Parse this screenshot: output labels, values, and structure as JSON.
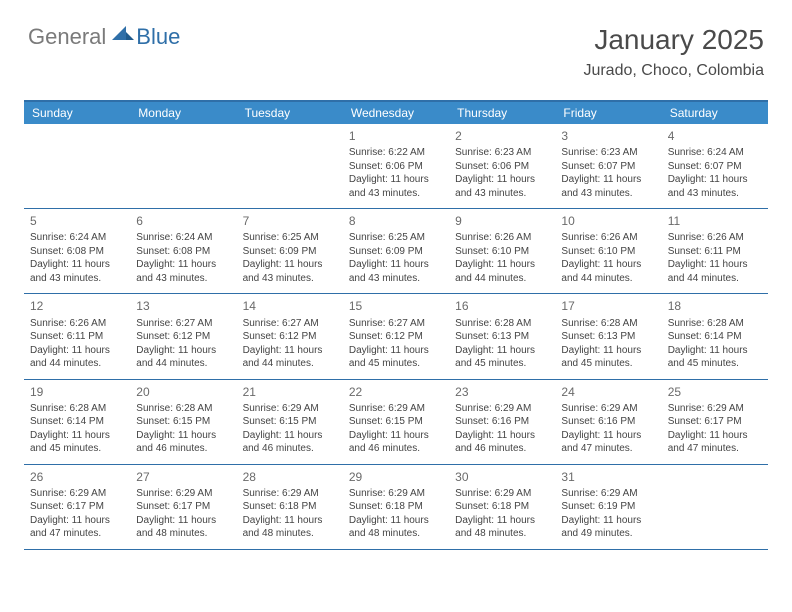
{
  "logo": {
    "general": "General",
    "blue": "Blue"
  },
  "title": "January 2025",
  "location": "Jurado, Choco, Colombia",
  "colors": {
    "header_bar": "#3a8bc9",
    "rule": "#2f6fa8",
    "title_text": "#4a4a4a",
    "logo_gray": "#7a7a7a",
    "logo_blue": "#2f6fa8",
    "day_text": "#444444",
    "daynum_text": "#6a6a6a",
    "white": "#ffffff"
  },
  "typography": {
    "title_fontsize": 28,
    "location_fontsize": 16,
    "weekday_fontsize": 12,
    "daynum_fontsize": 12,
    "body_fontsize": 10
  },
  "weekdays": [
    "Sunday",
    "Monday",
    "Tuesday",
    "Wednesday",
    "Thursday",
    "Friday",
    "Saturday"
  ],
  "days": [
    {
      "n": 1,
      "sr": "6:22 AM",
      "ss": "6:06 PM",
      "dl": "11 hours and 43 minutes."
    },
    {
      "n": 2,
      "sr": "6:23 AM",
      "ss": "6:06 PM",
      "dl": "11 hours and 43 minutes."
    },
    {
      "n": 3,
      "sr": "6:23 AM",
      "ss": "6:07 PM",
      "dl": "11 hours and 43 minutes."
    },
    {
      "n": 4,
      "sr": "6:24 AM",
      "ss": "6:07 PM",
      "dl": "11 hours and 43 minutes."
    },
    {
      "n": 5,
      "sr": "6:24 AM",
      "ss": "6:08 PM",
      "dl": "11 hours and 43 minutes."
    },
    {
      "n": 6,
      "sr": "6:24 AM",
      "ss": "6:08 PM",
      "dl": "11 hours and 43 minutes."
    },
    {
      "n": 7,
      "sr": "6:25 AM",
      "ss": "6:09 PM",
      "dl": "11 hours and 43 minutes."
    },
    {
      "n": 8,
      "sr": "6:25 AM",
      "ss": "6:09 PM",
      "dl": "11 hours and 43 minutes."
    },
    {
      "n": 9,
      "sr": "6:26 AM",
      "ss": "6:10 PM",
      "dl": "11 hours and 44 minutes."
    },
    {
      "n": 10,
      "sr": "6:26 AM",
      "ss": "6:10 PM",
      "dl": "11 hours and 44 minutes."
    },
    {
      "n": 11,
      "sr": "6:26 AM",
      "ss": "6:11 PM",
      "dl": "11 hours and 44 minutes."
    },
    {
      "n": 12,
      "sr": "6:26 AM",
      "ss": "6:11 PM",
      "dl": "11 hours and 44 minutes."
    },
    {
      "n": 13,
      "sr": "6:27 AM",
      "ss": "6:12 PM",
      "dl": "11 hours and 44 minutes."
    },
    {
      "n": 14,
      "sr": "6:27 AM",
      "ss": "6:12 PM",
      "dl": "11 hours and 44 minutes."
    },
    {
      "n": 15,
      "sr": "6:27 AM",
      "ss": "6:12 PM",
      "dl": "11 hours and 45 minutes."
    },
    {
      "n": 16,
      "sr": "6:28 AM",
      "ss": "6:13 PM",
      "dl": "11 hours and 45 minutes."
    },
    {
      "n": 17,
      "sr": "6:28 AM",
      "ss": "6:13 PM",
      "dl": "11 hours and 45 minutes."
    },
    {
      "n": 18,
      "sr": "6:28 AM",
      "ss": "6:14 PM",
      "dl": "11 hours and 45 minutes."
    },
    {
      "n": 19,
      "sr": "6:28 AM",
      "ss": "6:14 PM",
      "dl": "11 hours and 45 minutes."
    },
    {
      "n": 20,
      "sr": "6:28 AM",
      "ss": "6:15 PM",
      "dl": "11 hours and 46 minutes."
    },
    {
      "n": 21,
      "sr": "6:29 AM",
      "ss": "6:15 PM",
      "dl": "11 hours and 46 minutes."
    },
    {
      "n": 22,
      "sr": "6:29 AM",
      "ss": "6:15 PM",
      "dl": "11 hours and 46 minutes."
    },
    {
      "n": 23,
      "sr": "6:29 AM",
      "ss": "6:16 PM",
      "dl": "11 hours and 46 minutes."
    },
    {
      "n": 24,
      "sr": "6:29 AM",
      "ss": "6:16 PM",
      "dl": "11 hours and 47 minutes."
    },
    {
      "n": 25,
      "sr": "6:29 AM",
      "ss": "6:17 PM",
      "dl": "11 hours and 47 minutes."
    },
    {
      "n": 26,
      "sr": "6:29 AM",
      "ss": "6:17 PM",
      "dl": "11 hours and 47 minutes."
    },
    {
      "n": 27,
      "sr": "6:29 AM",
      "ss": "6:17 PM",
      "dl": "11 hours and 48 minutes."
    },
    {
      "n": 28,
      "sr": "6:29 AM",
      "ss": "6:18 PM",
      "dl": "11 hours and 48 minutes."
    },
    {
      "n": 29,
      "sr": "6:29 AM",
      "ss": "6:18 PM",
      "dl": "11 hours and 48 minutes."
    },
    {
      "n": 30,
      "sr": "6:29 AM",
      "ss": "6:18 PM",
      "dl": "11 hours and 48 minutes."
    },
    {
      "n": 31,
      "sr": "6:29 AM",
      "ss": "6:19 PM",
      "dl": "11 hours and 49 minutes."
    }
  ],
  "layout": {
    "first_weekday_index": 3,
    "columns": 7,
    "labels": {
      "sunrise": "Sunrise:",
      "sunset": "Sunset:",
      "daylight": "Daylight:"
    }
  }
}
